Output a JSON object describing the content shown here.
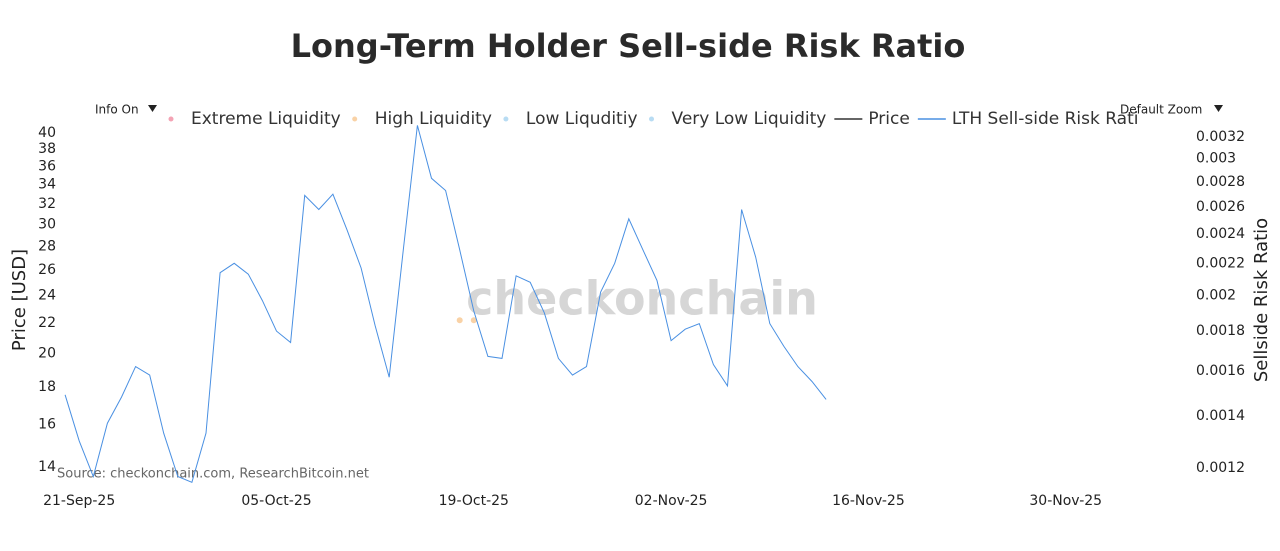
{
  "chart_data": {
    "type": "line",
    "title": "Long-Term Holder Sell-side Risk Ratio",
    "y_label": "Price [USD]",
    "y2_label": "Sellside Risk Ratio",
    "source": "Source: checkonchain.com, ResearchBitcoin.net",
    "watermark": "checkonchain",
    "log_y": true,
    "log_y2": true,
    "grid": false,
    "legend": "top",
    "xlim": [
      "2025-09-19",
      "2025-12-03"
    ],
    "xticks": [
      {
        "value": "2025-09-21",
        "label": "21-Sep-25"
      },
      {
        "value": "2025-10-05",
        "label": "05-Oct-25"
      },
      {
        "value": "2025-10-19",
        "label": "19-Oct-25"
      },
      {
        "value": "2025-11-02",
        "label": "02-Nov-25"
      },
      {
        "value": "2025-11-16",
        "label": "16-Nov-25"
      },
      {
        "value": "2025-11-30",
        "label": "30-Nov-25"
      }
    ],
    "ylim": [
      13.15,
      42.3
    ],
    "yticks": [
      14,
      16,
      18,
      20,
      22,
      24,
      26,
      28,
      30,
      32,
      34,
      36,
      38,
      40
    ],
    "y2lim": [
      0.001134,
      0.003414
    ],
    "y2ticks": [
      0.0012,
      0.0014,
      0.0016,
      0.0018,
      0.002,
      0.0022,
      0.0024,
      0.0026,
      0.0028,
      0.003,
      0.0032
    ],
    "x": [
      "2025-09-20",
      "2025-09-21",
      "2025-09-22",
      "2025-09-23",
      "2025-09-24",
      "2025-09-25",
      "2025-09-26",
      "2025-09-27",
      "2025-09-28",
      "2025-09-29",
      "2025-09-30",
      "2025-10-01",
      "2025-10-02",
      "2025-10-03",
      "2025-10-04",
      "2025-10-05",
      "2025-10-06",
      "2025-10-07",
      "2025-10-08",
      "2025-10-09",
      "2025-10-10",
      "2025-10-11",
      "2025-10-12",
      "2025-10-13",
      "2025-10-14",
      "2025-10-15",
      "2025-10-16",
      "2025-10-17",
      "2025-10-18",
      "2025-10-19",
      "2025-10-20",
      "2025-10-21",
      "2025-10-22",
      "2025-10-23",
      "2025-10-24",
      "2025-10-25",
      "2025-10-26",
      "2025-10-27",
      "2025-10-28",
      "2025-10-29",
      "2025-10-30",
      "2025-10-31",
      "2025-11-01",
      "2025-11-02",
      "2025-11-03",
      "2025-11-04",
      "2025-11-05",
      "2025-11-06",
      "2025-11-07",
      "2025-11-08",
      "2025-11-09",
      "2025-11-10",
      "2025-11-11",
      "2025-11-12",
      "2025-11-13"
    ],
    "series": [
      {
        "name": "Extreme Liquidity",
        "color": "#f4a3b4",
        "mode": "markers"
      },
      {
        "name": "High Liquidity",
        "color": "#f9d2a6",
        "mode": "markers",
        "x": [
          "2025-10-18",
          "2025-10-19"
        ],
        "values": [
          22.2,
          22.2
        ]
      },
      {
        "name": "Low Liquditiy",
        "color": "#b8dcf3",
        "mode": "markers"
      },
      {
        "name": "Very Low Liquidity",
        "color": "#b8dcf3",
        "mode": "markers"
      },
      {
        "name": "Price",
        "color": "#333333",
        "mode": "lines"
      },
      {
        "name": "LTH Sell-side Risk Rati",
        "color": "#4a90e2",
        "mode": "lines",
        "axis": "y2",
        "values": [
          0.00149,
          0.0013,
          0.00117,
          0.00137,
          0.00148,
          0.00162,
          0.00158,
          0.00133,
          0.00117,
          0.00115,
          0.00133,
          0.00214,
          0.0022,
          0.00213,
          0.00197,
          0.0018,
          0.00174,
          0.00269,
          0.00258,
          0.0027,
          0.00243,
          0.00217,
          0.00183,
          0.00157,
          0.00229,
          0.00331,
          0.00283,
          0.00273,
          0.00229,
          0.00191,
          0.00167,
          0.00166,
          0.00212,
          0.00208,
          0.0019,
          0.00166,
          0.00158,
          0.00162,
          0.00202,
          0.0022,
          0.00251,
          0.00229,
          0.00209,
          0.00175,
          0.00181,
          0.00184,
          0.00163,
          0.00153,
          0.00258,
          0.00224,
          0.00184,
          0.00172,
          0.00162,
          0.00155,
          0.00147
        ]
      }
    ]
  },
  "controls": {
    "info": "Info On",
    "zoom": "Default Zoom"
  }
}
